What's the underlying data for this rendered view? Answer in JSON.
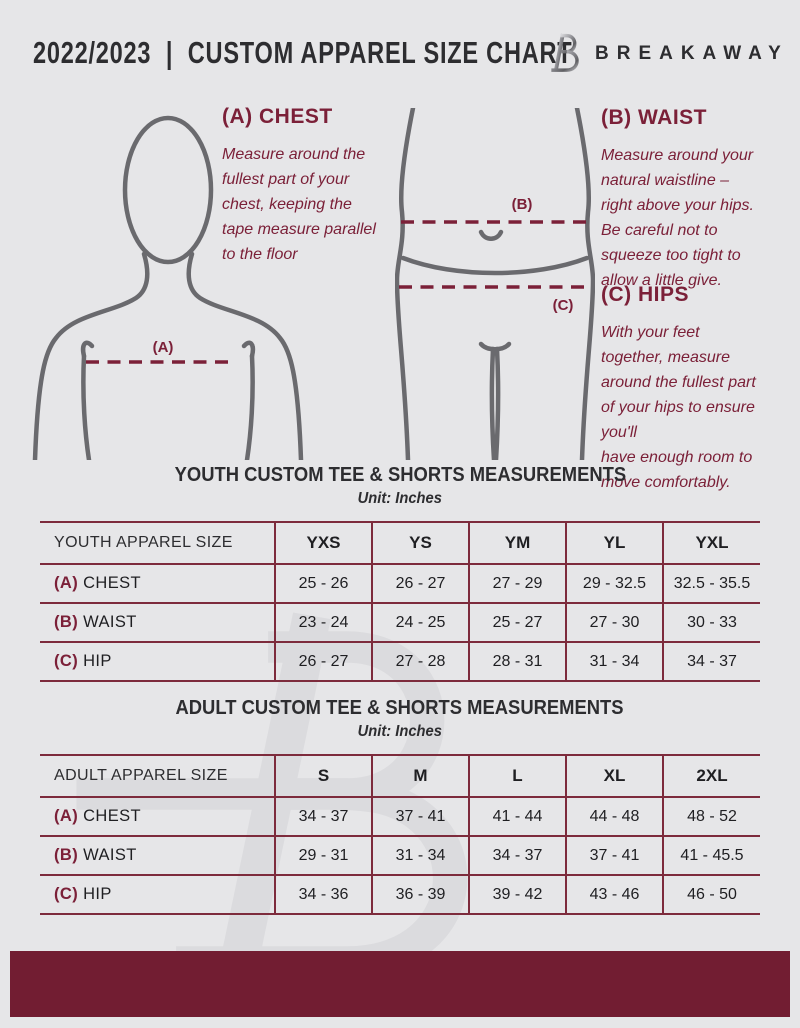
{
  "colors": {
    "bg": "#e6e6e8",
    "accent": "#7b2038",
    "table-border": "#7d2b3c",
    "footer": "#721d32",
    "dark": "#2d2d30",
    "text": "#1f1f22",
    "figure": "#6a6a6e",
    "watermark": "#dadadd"
  },
  "header": {
    "title": "2022/2023  |  CUSTOM APPAREL SIZE CHART",
    "brand": "BREAKAWAY"
  },
  "instructions": {
    "chest": {
      "title": "(A) CHEST",
      "body": "Measure around the\nfullest part of your\nchest, keeping the\ntape measure parallel\nto the floor"
    },
    "waist": {
      "title": "(B) WAIST",
      "body": "Measure around your\nnatural waistline –\nright above your hips.\nBe careful not to\nsqueeze too tight to\nallow a little give."
    },
    "hips": {
      "title": "(C) HIPS",
      "body": "With your feet\ntogether, measure\naround the fullest part\nof your hips to ensure\nyou'll\nhave enough room to\nmove comfortably."
    }
  },
  "diagram_labels": {
    "chest": "(A)",
    "waist": "(B)",
    "hips": "(C)"
  },
  "youth_table": {
    "title": "YOUTH CUSTOM TEE & SHORTS MEASUREMENTS",
    "unit": "Unit: Inches",
    "header": [
      "YOUTH APPAREL SIZE",
      "YXS",
      "YS",
      "YM",
      "YL",
      "YXL"
    ],
    "rows": [
      {
        "prefix": "(A)",
        "label": "CHEST",
        "values": [
          "25 - 26",
          "26 - 27",
          "27 - 29",
          "29 - 32.5",
          "32.5 - 35.5"
        ]
      },
      {
        "prefix": "(B)",
        "label": "WAIST",
        "values": [
          "23 - 24",
          "24 - 25",
          "25 - 27",
          "27 - 30",
          "30 - 33"
        ]
      },
      {
        "prefix": "(C)",
        "label": "HIP",
        "values": [
          "26 - 27",
          "27 - 28",
          "28 - 31",
          "31 - 34",
          "34 - 37"
        ]
      }
    ]
  },
  "adult_table": {
    "title": "ADULT CUSTOM TEE & SHORTS MEASUREMENTS",
    "unit": "Unit: Inches",
    "header": [
      "ADULT APPAREL SIZE",
      "S",
      "M",
      "L",
      "XL",
      "2XL"
    ],
    "rows": [
      {
        "prefix": "(A)",
        "label": "CHEST",
        "values": [
          "34 - 37",
          "37 - 41",
          "41 - 44",
          "44 - 48",
          "48 - 52"
        ]
      },
      {
        "prefix": "(B)",
        "label": "WAIST",
        "values": [
          "29 - 31",
          "31 - 34",
          "34 - 37",
          "37 - 41",
          "41 - 45.5"
        ]
      },
      {
        "prefix": "(C)",
        "label": "HIP",
        "values": [
          "34 - 36",
          "36 - 39",
          "39 - 42",
          "43 - 46",
          "46 - 50"
        ]
      }
    ]
  }
}
